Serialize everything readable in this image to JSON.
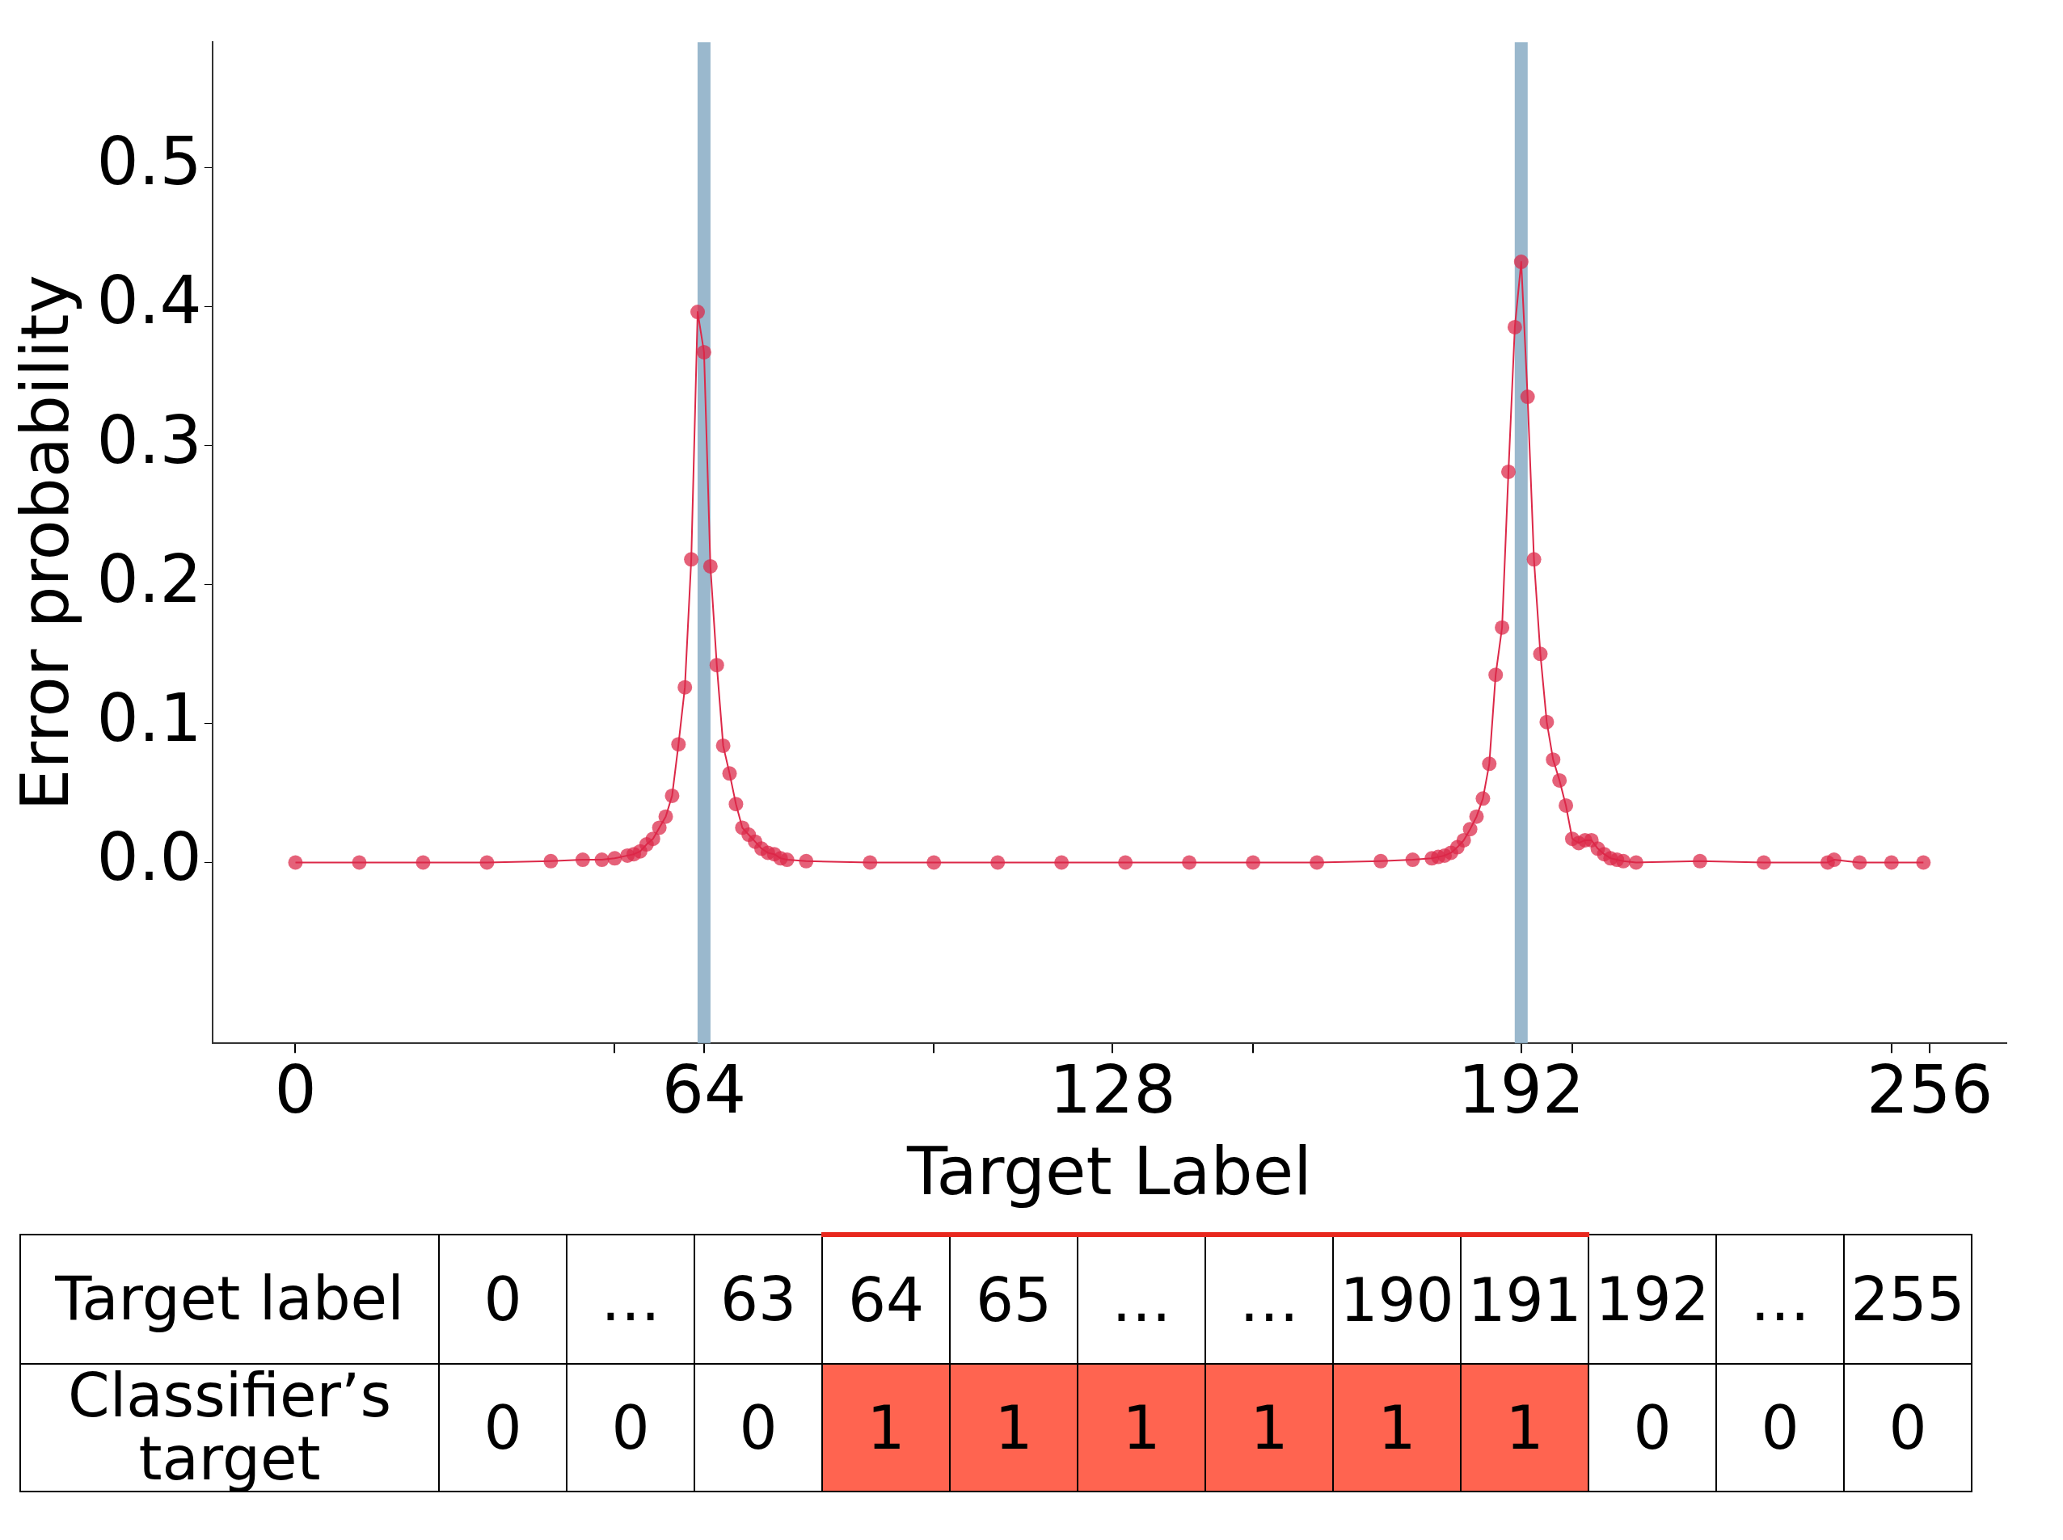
{
  "chart_data": {
    "type": "line",
    "xlabel": "Target Label",
    "ylabel": "Error probability",
    "series": [
      {
        "color": "#dc2848",
        "x": [
          0,
          10,
          20,
          30,
          40,
          45,
          48,
          50,
          52,
          53,
          54,
          55,
          56,
          57,
          58,
          59,
          60,
          61,
          62,
          63,
          64,
          65,
          66,
          67,
          68,
          69,
          70,
          71,
          72,
          73,
          74,
          75,
          76,
          77,
          80,
          90,
          100,
          110,
          120,
          130,
          140,
          150,
          160,
          170,
          175,
          178,
          179,
          180,
          181,
          182,
          183,
          184,
          185,
          186,
          187,
          188,
          189,
          190,
          191,
          192,
          193,
          194,
          195,
          196,
          197,
          198,
          199,
          200,
          201,
          202,
          203,
          204,
          205,
          206,
          207,
          208,
          210,
          220,
          230,
          240,
          241,
          245,
          250,
          255
        ],
        "values": [
          0,
          0,
          0,
          0,
          0.001,
          0.002,
          0.002,
          0.003,
          0.005,
          0.006,
          0.008,
          0.013,
          0.017,
          0.025,
          0.033,
          0.048,
          0.085,
          0.126,
          0.218,
          0.396,
          0.367,
          0.213,
          0.142,
          0.084,
          0.064,
          0.042,
          0.025,
          0.02,
          0.015,
          0.01,
          0.007,
          0.006,
          0.003,
          0.002,
          0.001,
          0,
          0,
          0,
          0,
          0,
          0,
          0,
          0,
          0.001,
          0.002,
          0.003,
          0.004,
          0.005,
          0.007,
          0.011,
          0.016,
          0.024,
          0.033,
          0.046,
          0.071,
          0.135,
          0.169,
          0.281,
          0.385,
          0.432,
          0.335,
          0.218,
          0.15,
          0.101,
          0.074,
          0.059,
          0.041,
          0.017,
          0.014,
          0.016,
          0.016,
          0.01,
          0.006,
          0.003,
          0.002,
          0.001,
          0,
          0.001,
          0,
          0,
          0.002,
          0,
          0,
          0
        ]
      }
    ],
    "marker": "circle",
    "line_style": "solid",
    "grid": false,
    "legend": false,
    "xlim": [
      -13,
      268
    ],
    "xticks": [
      0,
      {
        "value": 50,
        "label": null
      },
      64,
      {
        "value": 100,
        "label": null
      },
      128,
      {
        "value": 150,
        "label": null
      },
      192,
      {
        "value": 200,
        "label": null
      },
      {
        "value": 250,
        "label": null
      },
      256
    ],
    "ylim": [
      -0.13,
      0.59
    ],
    "yticks": [
      {
        "value": 0,
        "label": "0.0"
      },
      0.1,
      0.2,
      0.3,
      0.4,
      0.5
    ],
    "ref_lines": [
      {
        "axis": "x",
        "value": 64,
        "color": "#8fb0c8"
      },
      {
        "axis": "x",
        "value": 192,
        "color": "#8fb0c8"
      }
    ],
    "annotations": [
      "Target label",
      "0",
      "…",
      "63",
      "64",
      "65",
      "…",
      "…",
      "190",
      "191",
      "192",
      "…",
      "255",
      "Classifier’s target",
      "0",
      "0",
      "0",
      "1",
      "1",
      "1",
      "1",
      "1",
      "1",
      "0",
      "0",
      "0"
    ]
  }
}
